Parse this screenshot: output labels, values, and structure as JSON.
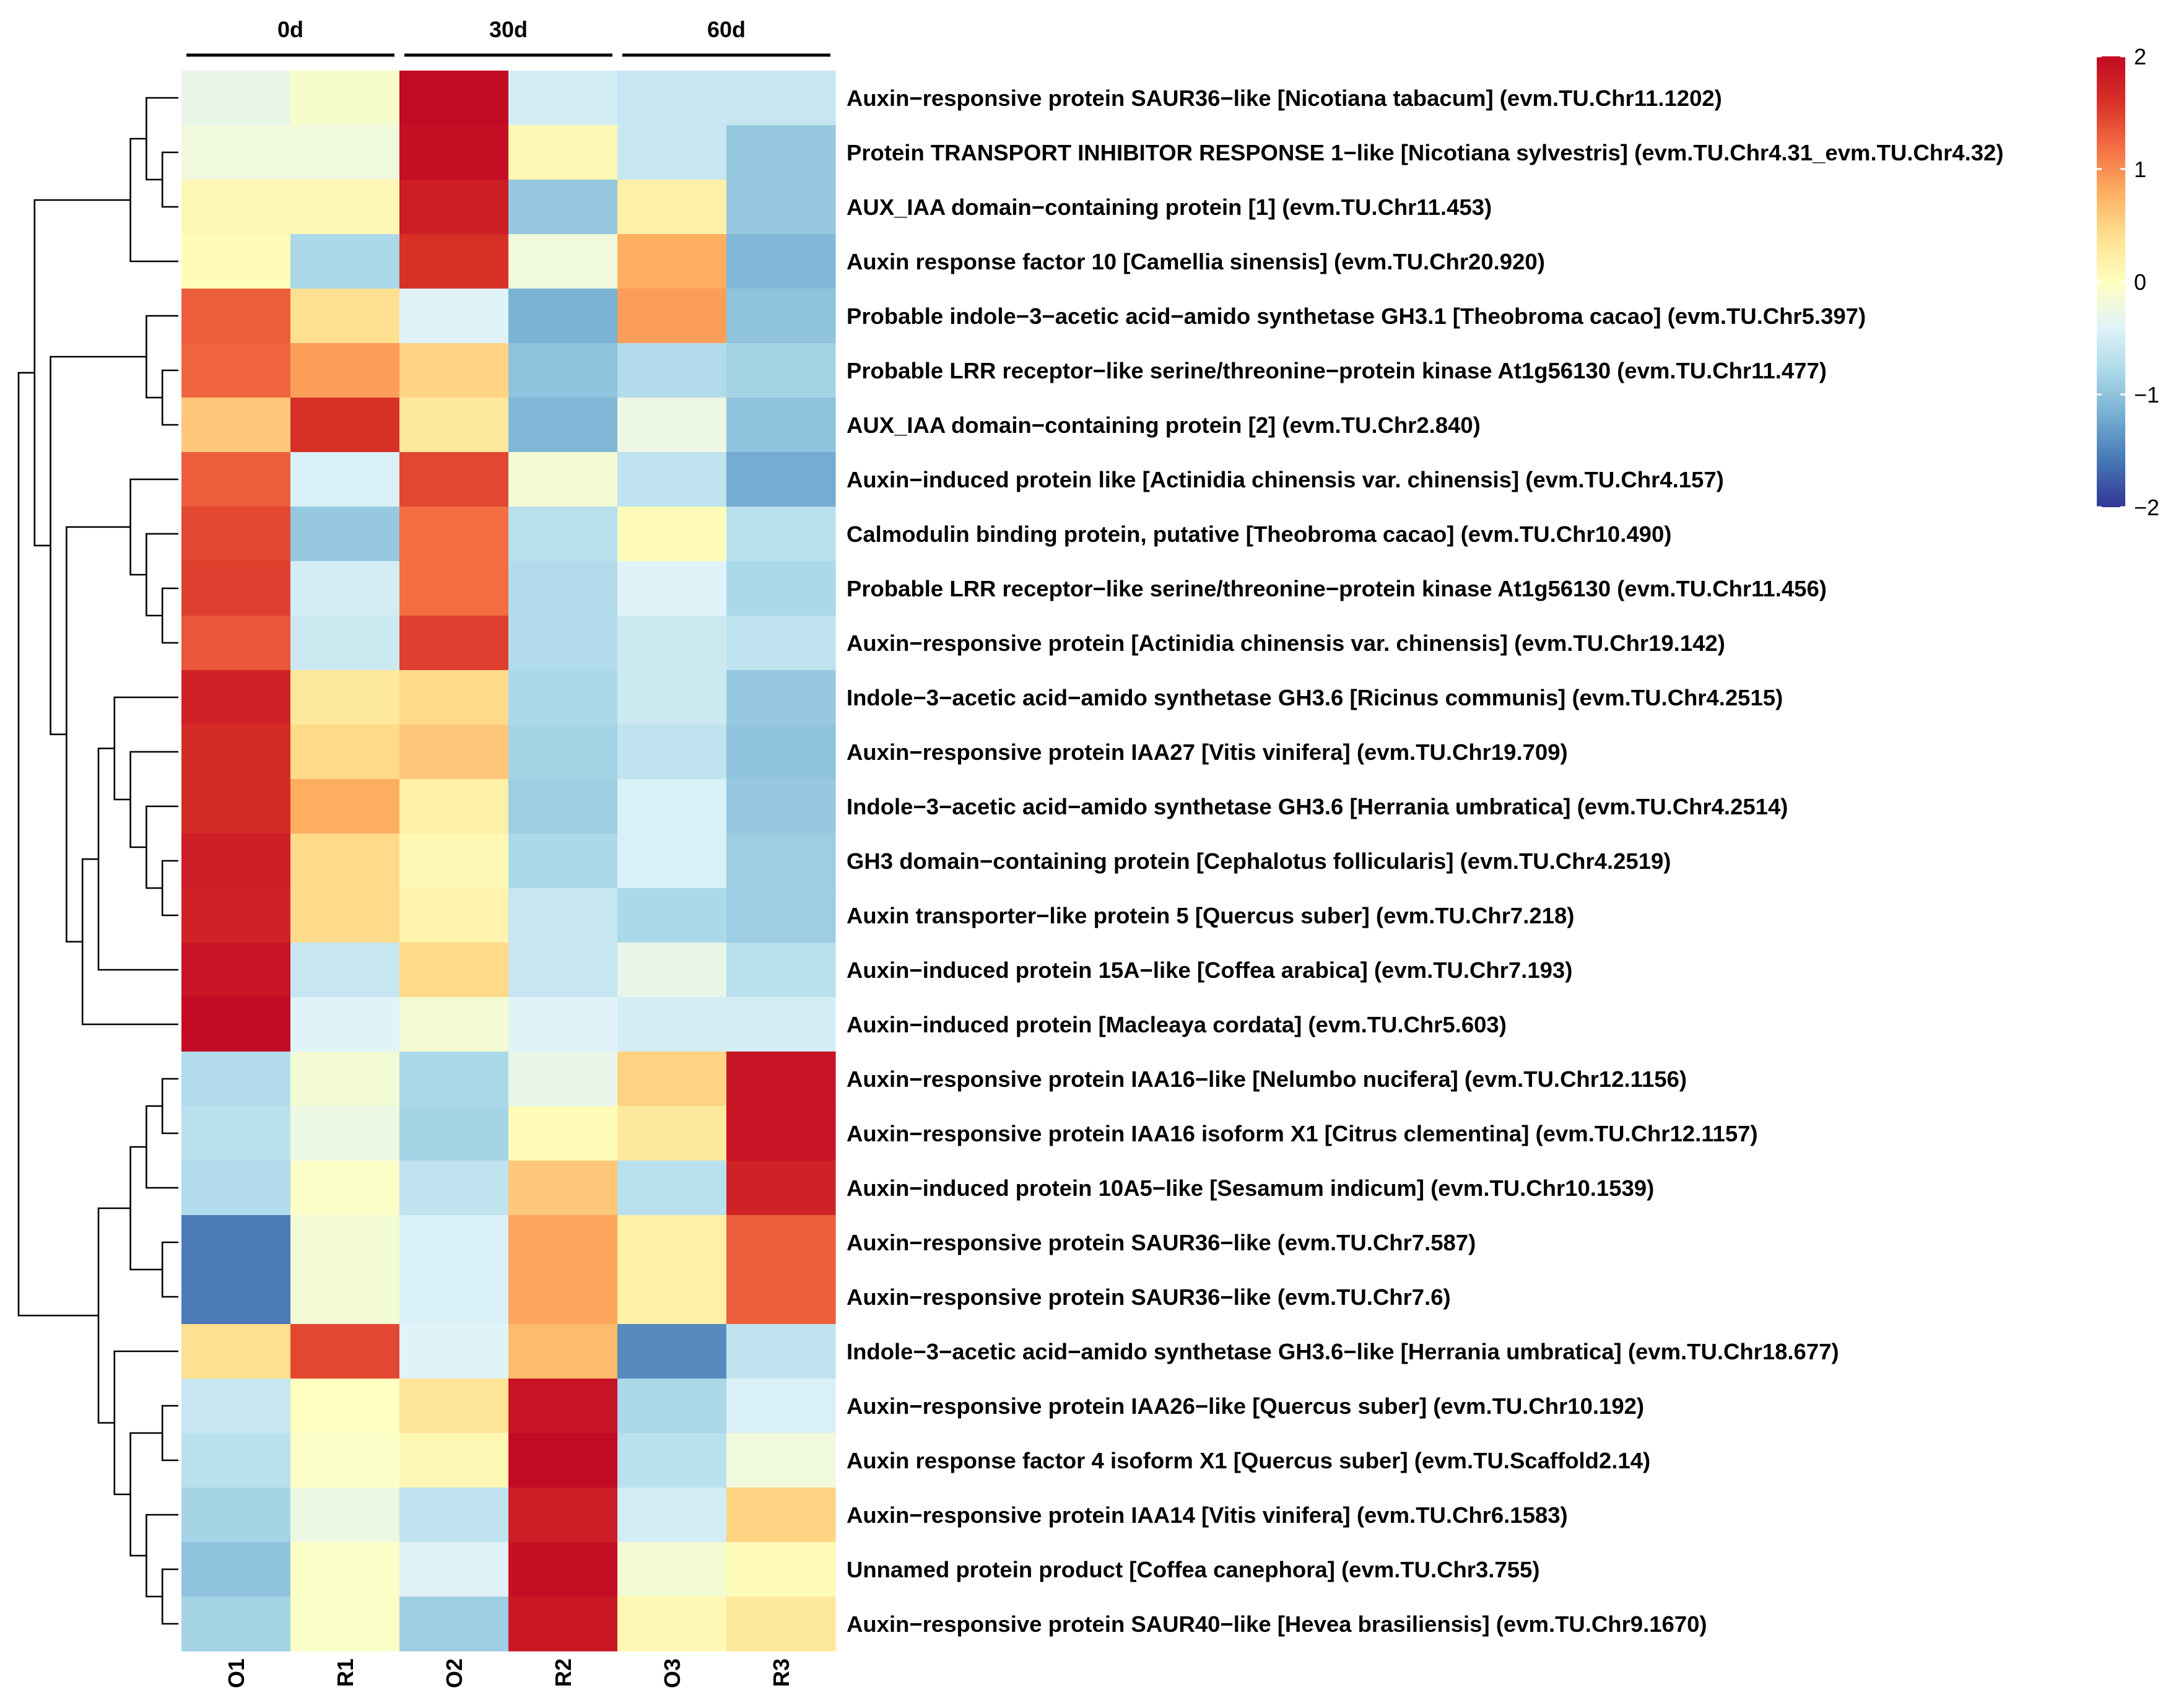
{
  "chart_data": {
    "type": "heatmap",
    "title": "",
    "column_groups": [
      {
        "label": "0d",
        "columns": [
          "O1",
          "R1"
        ]
      },
      {
        "label": "30d",
        "columns": [
          "O2",
          "R2"
        ]
      },
      {
        "label": "60d",
        "columns": [
          "O3",
          "R3"
        ]
      }
    ],
    "columns": [
      "O1",
      "R1",
      "O2",
      "R2",
      "O3",
      "R3"
    ],
    "rows": [
      "Auxin−responsive protein SAUR36−like [Nicotiana tabacum] (evm.TU.Chr11.1202)",
      "Protein TRANSPORT INHIBITOR RESPONSE 1−like [Nicotiana sylvestris] (evm.TU.Chr4.31_evm.TU.Chr4.32)",
      "AUX_IAA domain−containing protein [1] (evm.TU.Chr11.453)",
      "Auxin response factor 10 [Camellia sinensis] (evm.TU.Chr20.920)",
      "Probable indole−3−acetic acid−amido synthetase GH3.1 [Theobroma cacao] (evm.TU.Chr5.397)",
      "Probable LRR receptor−like serine/threonine−protein kinase At1g56130 (evm.TU.Chr11.477)",
      "AUX_IAA domain−containing protein [2] (evm.TU.Chr2.840)",
      "Auxin−induced protein like [Actinidia chinensis var. chinensis] (evm.TU.Chr4.157)",
      "Calmodulin binding protein, putative [Theobroma cacao] (evm.TU.Chr10.490)",
      "Probable LRR receptor−like serine/threonine−protein kinase At1g56130 (evm.TU.Chr11.456)",
      "Auxin−responsive protein [Actinidia chinensis var. chinensis] (evm.TU.Chr19.142)",
      "Indole−3−acetic acid−amido synthetase GH3.6 [Ricinus communis] (evm.TU.Chr4.2515)",
      "Auxin−responsive protein IAA27 [Vitis vinifera] (evm.TU.Chr19.709)",
      "Indole−3−acetic acid−amido synthetase GH3.6 [Herrania umbratica] (evm.TU.Chr4.2514)",
      "GH3 domain−containing protein [Cephalotus follicularis] (evm.TU.Chr4.2519)",
      "Auxin transporter−like protein 5 [Quercus suber] (evm.TU.Chr7.218)",
      "Auxin−induced protein 15A−like [Coffea arabica] (evm.TU.Chr7.193)",
      "Auxin−induced protein [Macleaya cordata] (evm.TU.Chr5.603)",
      "Auxin−responsive protein IAA16−like [Nelumbo nucifera] (evm.TU.Chr12.1156)",
      "Auxin−responsive protein IAA16 isoform X1 [Citrus clementina] (evm.TU.Chr12.1157)",
      "Auxin−induced protein 10A5−like [Sesamum indicum] (evm.TU.Chr10.1539)",
      "Auxin−responsive protein SAUR36−like (evm.TU.Chr7.587)",
      "Auxin−responsive protein SAUR36−like (evm.TU.Chr7.6)",
      "Indole−3−acetic acid−amido synthetase GH3.6−like [Herrania umbratica] (evm.TU.Chr18.677)",
      "Auxin−responsive protein IAA26−like [Quercus suber] (evm.TU.Chr10.192)",
      "Auxin response factor 4 isoform X1 [Quercus suber] (evm.TU.Scaffold2.14)",
      "Auxin−responsive protein IAA14 [Vitis vinifera] (evm.TU.Chr6.1583)",
      "Unnamed protein product [Coffea canephora] (evm.TU.Chr3.755)",
      "Auxin−responsive protein SAUR40−like [Hevea brasiliensis] (evm.TU.Chr9.1670)"
    ],
    "values": [
      [
        -0.3,
        -0.1,
        2.0,
        -0.5,
        -0.6,
        -0.6
      ],
      [
        -0.2,
        -0.2,
        1.95,
        0.1,
        -0.6,
        -0.95
      ],
      [
        0.1,
        0.1,
        1.8,
        -0.95,
        0.2,
        -0.95
      ],
      [
        0.05,
        -0.8,
        1.6,
        -0.2,
        0.8,
        -1.1
      ],
      [
        1.3,
        0.4,
        -0.4,
        -1.15,
        0.9,
        -1.0
      ],
      [
        1.25,
        0.9,
        0.5,
        -1.0,
        -0.75,
        -0.85
      ],
      [
        0.6,
        1.6,
        0.3,
        -1.1,
        -0.25,
        -1.0
      ],
      [
        1.3,
        -0.45,
        1.45,
        -0.15,
        -0.65,
        -1.2
      ],
      [
        1.45,
        -0.95,
        1.2,
        -0.7,
        0.05,
        -0.7
      ],
      [
        1.5,
        -0.5,
        1.2,
        -0.75,
        -0.4,
        -0.8
      ],
      [
        1.35,
        -0.55,
        1.5,
        -0.75,
        -0.55,
        -0.65
      ],
      [
        1.75,
        0.3,
        0.45,
        -0.8,
        -0.55,
        -0.95
      ],
      [
        1.65,
        0.45,
        0.6,
        -0.85,
        -0.65,
        -1.0
      ],
      [
        1.65,
        0.8,
        0.2,
        -0.9,
        -0.45,
        -0.95
      ],
      [
        1.8,
        0.45,
        0.1,
        -0.8,
        -0.45,
        -0.9
      ],
      [
        1.75,
        0.45,
        0.15,
        -0.6,
        -0.8,
        -0.9
      ],
      [
        1.9,
        -0.6,
        0.45,
        -0.6,
        -0.3,
        -0.7
      ],
      [
        2.0,
        -0.4,
        -0.15,
        -0.4,
        -0.5,
        -0.5
      ],
      [
        -0.75,
        -0.15,
        -0.8,
        -0.3,
        0.5,
        1.9
      ],
      [
        -0.7,
        -0.25,
        -0.85,
        0.05,
        0.3,
        1.9
      ],
      [
        -0.75,
        -0.05,
        -0.65,
        0.6,
        -0.7,
        1.75
      ],
      [
        -1.55,
        -0.15,
        -0.45,
        0.85,
        0.2,
        1.3
      ],
      [
        -1.55,
        -0.15,
        -0.45,
        0.85,
        0.2,
        1.3
      ],
      [
        0.4,
        1.45,
        -0.4,
        0.7,
        -1.45,
        -0.65
      ],
      [
        -0.6,
        0.0,
        0.35,
        1.9,
        -0.8,
        -0.45
      ],
      [
        -0.7,
        -0.05,
        0.1,
        2.0,
        -0.7,
        -0.2
      ],
      [
        -0.85,
        -0.25,
        -0.65,
        1.8,
        -0.5,
        0.5
      ],
      [
        -1.0,
        -0.05,
        -0.4,
        1.95,
        -0.15,
        0.05
      ],
      [
        -0.85,
        -0.05,
        -0.9,
        1.85,
        0.1,
        0.3
      ]
    ],
    "color_scale": {
      "min": -2,
      "max": 2,
      "stops": [
        "#313695",
        "#4575b4",
        "#74add1",
        "#abd9e9",
        "#e0f3f8",
        "#ffffbf",
        "#fee090",
        "#fdae61",
        "#f46d43",
        "#d73027",
        "#c20a24"
      ]
    },
    "legend_ticks": [
      2,
      1,
      0,
      -1,
      -2
    ],
    "legend_tick_labels": [
      "2",
      "1",
      "0",
      "−1",
      "−2"
    ],
    "legend_position": "top-right",
    "row_dendrogram": [
      [
        [
          [
            0,
            [
              1,
              2
            ]
          ],
          3
        ],
        [
          [
            4,
            [
              5,
              6
            ]
          ],
          [
            [
              7,
              [
                8,
                [
                  9,
                  10
                ]
              ]
            ],
            [
              [
                [
                  11,
                  [
                    12,
                    [
                      13,
                      [
                        14,
                        15
                      ]
                    ]
                  ]
                ],
                16
              ],
              17
            ]
          ]
        ]
      ],
      [
        [
          [
            [
              18,
              19
            ],
            20
          ],
          [
            21,
            22
          ]
        ],
        [
          23,
          [
            [
              24,
              25
            ],
            [
              26,
              [
                27,
                28
              ]
            ]
          ]
        ]
      ]
    ]
  }
}
